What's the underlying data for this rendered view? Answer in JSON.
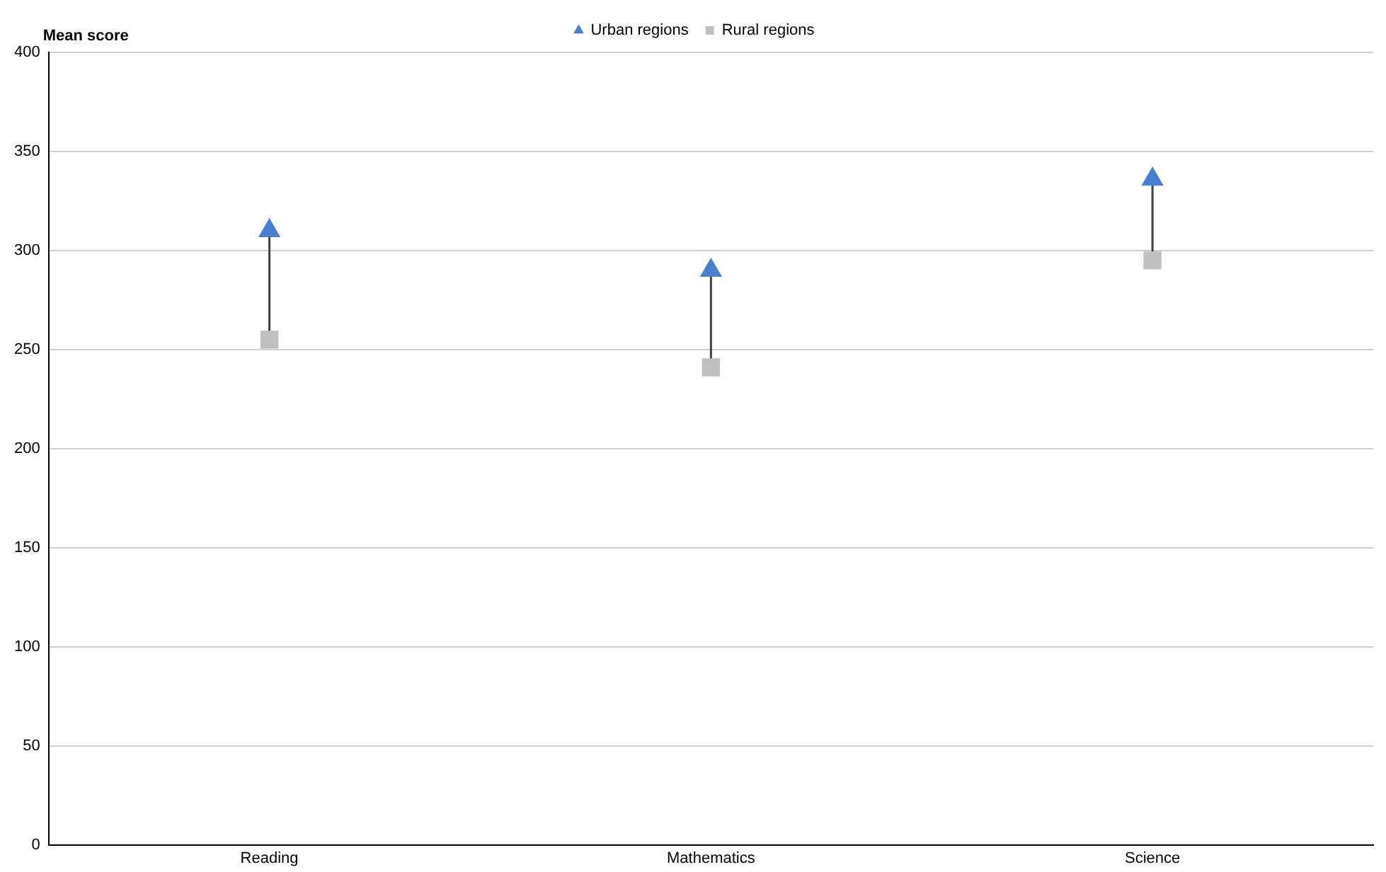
{
  "chart_data": {
    "type": "scatter",
    "ylabel": "Mean score",
    "categories": [
      "Reading",
      "Mathematics",
      "Science"
    ],
    "series": [
      {
        "name": "Urban regions",
        "color": "#4a7fd0",
        "marker": "triangle",
        "values": [
          310,
          290,
          336
        ]
      },
      {
        "name": "Rural regions",
        "color": "#bfbfbf",
        "marker": "square",
        "values": [
          255,
          241,
          295
        ]
      }
    ],
    "ylim": [
      0,
      400
    ],
    "yticks": [
      0,
      50,
      100,
      150,
      200,
      250,
      300,
      350,
      400
    ],
    "grid": "y",
    "legend": "top"
  }
}
